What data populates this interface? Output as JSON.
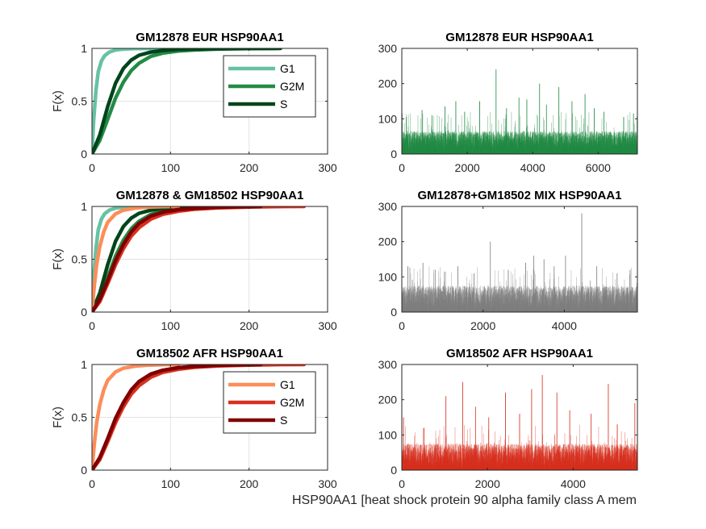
{
  "footer_label": "HSP90AA1 [heat shock protein 90 alpha family class A mem",
  "chart_data": [
    {
      "id": "cdf-eur",
      "type": "line",
      "subtype": "empirical-cdf",
      "title": "GM12878 EUR HSP90AA1",
      "ylabel": "F(x)",
      "xlim": [
        0,
        300
      ],
      "ylim": [
        0,
        1
      ],
      "xticks": [
        0,
        100,
        200,
        300
      ],
      "yticks": [
        0,
        0.5,
        1
      ],
      "grid": true,
      "legend": {
        "placement": "top-right"
      },
      "series": [
        {
          "name": "G1",
          "color": "#66c2a4",
          "x": [
            0,
            2,
            5,
            8,
            12,
            16,
            22,
            30,
            40,
            55,
            70,
            90
          ],
          "y": [
            0,
            0.3,
            0.6,
            0.78,
            0.88,
            0.93,
            0.965,
            0.985,
            0.993,
            0.998,
            0.999,
            1
          ]
        },
        {
          "name": "G2M",
          "color": "#238b45",
          "x": [
            0,
            10,
            20,
            30,
            40,
            50,
            60,
            75,
            90,
            110,
            130,
            160,
            200,
            235
          ],
          "y": [
            0,
            0.13,
            0.33,
            0.53,
            0.68,
            0.79,
            0.86,
            0.925,
            0.955,
            0.975,
            0.985,
            0.993,
            0.998,
            1
          ]
        },
        {
          "name": "S",
          "color": "#00441b",
          "x": [
            0,
            10,
            20,
            30,
            40,
            50,
            60,
            75,
            90,
            110,
            140,
            180,
            240
          ],
          "y": [
            0,
            0.18,
            0.45,
            0.67,
            0.81,
            0.89,
            0.935,
            0.965,
            0.98,
            0.99,
            0.995,
            0.998,
            1
          ]
        }
      ]
    },
    {
      "id": "counts-eur",
      "type": "bar",
      "subtype": "per-cell-counts",
      "title": "GM12878 EUR HSP90AA1",
      "xlim": [
        0,
        7200
      ],
      "ylim": [
        0,
        300
      ],
      "xticks": [
        0,
        2000,
        4000,
        6000
      ],
      "yticks": [
        0,
        100,
        200,
        300
      ],
      "color": "#238b45",
      "n": 7200,
      "typical_max": 65,
      "peaks": [
        [
          140,
          105
        ],
        [
          620,
          125
        ],
        [
          920,
          110
        ],
        [
          1320,
          135
        ],
        [
          1650,
          150
        ],
        [
          1920,
          120
        ],
        [
          2380,
          150
        ],
        [
          2880,
          240
        ],
        [
          3200,
          130
        ],
        [
          3580,
          160
        ],
        [
          3820,
          155
        ],
        [
          4210,
          200
        ],
        [
          4420,
          140
        ],
        [
          4800,
          190
        ],
        [
          5200,
          150
        ],
        [
          5600,
          170
        ],
        [
          5880,
          130
        ],
        [
          6180,
          120
        ],
        [
          6780,
          105
        ],
        [
          7080,
          115
        ]
      ]
    },
    {
      "id": "cdf-mix",
      "type": "line",
      "subtype": "empirical-cdf",
      "title": "GM12878 & GM18502 HSP90AA1",
      "ylabel": "F(x)",
      "xlim": [
        0,
        300
      ],
      "ylim": [
        0,
        1
      ],
      "xticks": [
        0,
        100,
        200,
        300
      ],
      "yticks": [
        0,
        0.5,
        1
      ],
      "grid": true,
      "legend": null,
      "series": [
        {
          "color": "#66c2a4",
          "x": [
            0,
            2,
            5,
            8,
            12,
            16,
            22,
            30,
            40,
            55,
            70,
            90
          ],
          "y": [
            0,
            0.3,
            0.6,
            0.78,
            0.88,
            0.93,
            0.965,
            0.985,
            0.993,
            0.998,
            0.999,
            1
          ]
        },
        {
          "color": "#238b45",
          "x": [
            0,
            10,
            20,
            30,
            40,
            50,
            60,
            75,
            90,
            110,
            130,
            160,
            200,
            235
          ],
          "y": [
            0,
            0.13,
            0.33,
            0.53,
            0.68,
            0.79,
            0.86,
            0.925,
            0.955,
            0.975,
            0.985,
            0.993,
            0.998,
            1
          ]
        },
        {
          "color": "#00441b",
          "x": [
            0,
            10,
            20,
            30,
            40,
            50,
            60,
            75,
            90,
            110,
            140,
            180,
            240
          ],
          "y": [
            0,
            0.18,
            0.45,
            0.67,
            0.81,
            0.89,
            0.935,
            0.965,
            0.98,
            0.99,
            0.995,
            0.998,
            1
          ]
        },
        {
          "color": "#fc8d59",
          "x": [
            0,
            3,
            6,
            10,
            15,
            20,
            30,
            40,
            55,
            70,
            90,
            110
          ],
          "y": [
            0,
            0.25,
            0.45,
            0.62,
            0.76,
            0.85,
            0.93,
            0.965,
            0.985,
            0.993,
            0.998,
            1
          ]
        },
        {
          "color": "#d7301f",
          "x": [
            0,
            10,
            20,
            30,
            40,
            50,
            60,
            75,
            90,
            110,
            130,
            160,
            200,
            240,
            270
          ],
          "y": [
            0,
            0.1,
            0.27,
            0.45,
            0.6,
            0.72,
            0.8,
            0.88,
            0.925,
            0.955,
            0.973,
            0.986,
            0.995,
            0.999,
            1
          ]
        },
        {
          "color": "#7f0000",
          "x": [
            0,
            10,
            20,
            30,
            40,
            50,
            60,
            75,
            90,
            110,
            130,
            160,
            200,
            215
          ],
          "y": [
            0,
            0.12,
            0.3,
            0.49,
            0.64,
            0.76,
            0.84,
            0.91,
            0.945,
            0.97,
            0.982,
            0.992,
            0.998,
            1
          ]
        }
      ]
    },
    {
      "id": "counts-mix",
      "type": "bar",
      "subtype": "per-cell-counts",
      "title": "GM12878+GM18502 MIX HSP90AA1",
      "xlim": [
        0,
        5800
      ],
      "ylim": [
        0,
        300
      ],
      "xticks": [
        0,
        2000,
        4000
      ],
      "yticks": [
        0,
        100,
        200,
        300
      ],
      "color": "#7f7f7f",
      "n": 5800,
      "typical_max": 75,
      "peaks": [
        [
          150,
          130
        ],
        [
          520,
          140
        ],
        [
          820,
          120
        ],
        [
          1050,
          115
        ],
        [
          1380,
          130
        ],
        [
          1780,
          110
        ],
        [
          2180,
          200
        ],
        [
          2620,
          120
        ],
        [
          3050,
          140
        ],
        [
          3250,
          160
        ],
        [
          3500,
          150
        ],
        [
          3750,
          130
        ],
        [
          4030,
          160
        ],
        [
          4430,
          280
        ],
        [
          4800,
          130
        ],
        [
          5300,
          110
        ],
        [
          5620,
          120
        ]
      ]
    },
    {
      "id": "cdf-afr",
      "type": "line",
      "subtype": "empirical-cdf",
      "title": "GM18502 AFR HSP90AA1",
      "ylabel": "F(x)",
      "xlim": [
        0,
        300
      ],
      "ylim": [
        0,
        1
      ],
      "xticks": [
        0,
        100,
        200,
        300
      ],
      "yticks": [
        0,
        0.5,
        1
      ],
      "grid": true,
      "legend": {
        "placement": "top-right"
      },
      "series": [
        {
          "name": "G1",
          "color": "#fc8d59",
          "x": [
            0,
            3,
            6,
            10,
            15,
            20,
            30,
            40,
            55,
            70,
            90,
            110
          ],
          "y": [
            0,
            0.25,
            0.45,
            0.62,
            0.76,
            0.85,
            0.93,
            0.965,
            0.985,
            0.993,
            0.998,
            1
          ]
        },
        {
          "name": "G2M",
          "color": "#d7301f",
          "x": [
            0,
            10,
            20,
            30,
            40,
            50,
            60,
            75,
            90,
            110,
            130,
            160,
            200,
            240,
            270
          ],
          "y": [
            0,
            0.1,
            0.27,
            0.45,
            0.6,
            0.72,
            0.8,
            0.88,
            0.925,
            0.955,
            0.973,
            0.986,
            0.995,
            0.999,
            1
          ]
        },
        {
          "name": "S",
          "color": "#7f0000",
          "x": [
            0,
            10,
            20,
            30,
            40,
            50,
            60,
            75,
            90,
            110,
            130,
            160,
            200,
            215
          ],
          "y": [
            0,
            0.12,
            0.3,
            0.49,
            0.64,
            0.76,
            0.84,
            0.91,
            0.945,
            0.97,
            0.982,
            0.992,
            0.998,
            1
          ]
        }
      ]
    },
    {
      "id": "counts-afr",
      "type": "bar",
      "subtype": "per-cell-counts",
      "title": "GM18502 AFR HSP90AA1",
      "xlim": [
        0,
        5500
      ],
      "ylim": [
        0,
        300
      ],
      "xticks": [
        0,
        2000,
        4000
      ],
      "yticks": [
        0,
        100,
        200,
        300
      ],
      "color": "#d7301f",
      "n": 5500,
      "typical_max": 75,
      "peaks": [
        [
          40,
          150
        ],
        [
          520,
          120
        ],
        [
          1030,
          210
        ],
        [
          1420,
          250
        ],
        [
          1720,
          180
        ],
        [
          2030,
          150
        ],
        [
          2420,
          220
        ],
        [
          2750,
          160
        ],
        [
          3030,
          230
        ],
        [
          3280,
          270
        ],
        [
          3620,
          220
        ],
        [
          3920,
          170
        ],
        [
          4420,
          160
        ],
        [
          4820,
          245
        ],
        [
          5030,
          130
        ],
        [
          5440,
          190
        ]
      ]
    }
  ]
}
